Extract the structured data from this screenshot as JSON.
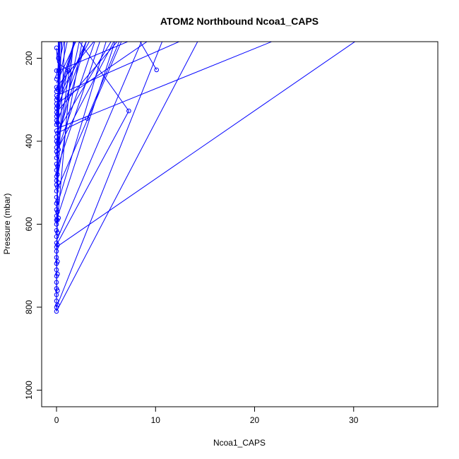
{
  "chart_data": {
    "type": "line",
    "title": "ATOM2 Northbound Ncoa1_CAPS",
    "xlabel": "Ncoa1_CAPS",
    "ylabel": "Pressure (mbar)",
    "xlim": [
      -1.5,
      38.5
    ],
    "ylim": [
      1040,
      160
    ],
    "y_axis_reversed": true,
    "xticks": [
      0,
      10,
      20,
      30
    ],
    "yticks": [
      200,
      400,
      600,
      800,
      1000
    ],
    "grid": false,
    "legend": "none",
    "series_color": "#0000ff",
    "segments": [
      {
        "x": [
          0.0,
          0.2,
          8.2,
          10.1
        ],
        "y": [
          810,
          230,
          150,
          228
        ]
      },
      {
        "x": [
          0.0,
          7.3,
          2.0,
          0.1,
          0.0
        ],
        "y": [
          650,
          327,
          150,
          300,
          360
        ]
      },
      {
        "x": [
          0.0,
          0.1,
          6.0
        ],
        "y": [
          480,
          420,
          150
        ]
      },
      {
        "x": [
          0.0,
          0.1,
          3.1,
          6.5
        ],
        "y": [
          410,
          380,
          345,
          150
        ]
      },
      {
        "x": [
          0.0,
          1.2,
          0.1,
          0.0
        ],
        "y": [
          300,
          230,
          210,
          175
        ]
      }
    ],
    "rays": [
      {
        "x": [
          0.0,
          35.0
        ],
        "y": [
          655,
          80
        ]
      },
      {
        "x": [
          0.0,
          30.0
        ],
        "y": [
          370,
          80
        ]
      },
      {
        "x": [
          0.0,
          16.0
        ],
        "y": [
          810,
          80
        ]
      },
      {
        "x": [
          0.0,
          12.0
        ],
        "y": [
          800,
          80
        ]
      },
      {
        "x": [
          0.0,
          10.0
        ],
        "y": [
          640,
          80
        ]
      },
      {
        "x": [
          0.0,
          9.0
        ],
        "y": [
          330,
          80
        ]
      },
      {
        "x": [
          0.0,
          8.0
        ],
        "y": [
          520,
          80
        ]
      },
      {
        "x": [
          0.0,
          7.0
        ],
        "y": [
          590,
          80
        ]
      },
      {
        "x": [
          0.0,
          6.0
        ],
        "y": [
          560,
          80
        ]
      },
      {
        "x": [
          0.0,
          5.5
        ],
        "y": [
          470,
          80
        ]
      },
      {
        "x": [
          0.0,
          5.0
        ],
        "y": [
          430,
          80
        ]
      },
      {
        "x": [
          0.0,
          4.5
        ],
        "y": [
          320,
          80
        ]
      },
      {
        "x": [
          0.0,
          4.0
        ],
        "y": [
          400,
          80
        ]
      },
      {
        "x": [
          0.0,
          3.5
        ],
        "y": [
          260,
          80
        ]
      },
      {
        "x": [
          0.0,
          3.2
        ],
        "y": [
          500,
          80
        ]
      },
      {
        "x": [
          0.0,
          2.8
        ],
        "y": [
          300,
          80
        ]
      },
      {
        "x": [
          0.0,
          2.5
        ],
        "y": [
          350,
          80
        ]
      },
      {
        "x": [
          0.0,
          2.2
        ],
        "y": [
          440,
          80
        ]
      },
      {
        "x": [
          0.0,
          1.8
        ],
        "y": [
          280,
          80
        ]
      },
      {
        "x": [
          0.0,
          1.5
        ],
        "y": [
          240,
          80
        ]
      },
      {
        "x": [
          0.0,
          1.2
        ],
        "y": [
          200,
          80
        ]
      },
      {
        "x": [
          0.0,
          0.8
        ],
        "y": [
          330,
          80
        ]
      },
      {
        "x": [
          0.0,
          0.6
        ],
        "y": [
          500,
          80
        ]
      },
      {
        "x": [
          0.0,
          0.4
        ],
        "y": [
          600,
          80
        ]
      },
      {
        "x": [
          0.0,
          0.3
        ],
        "y": [
          700,
          80
        ]
      },
      {
        "x": [
          0.0,
          0.2
        ],
        "y": [
          780,
          80
        ]
      },
      {
        "x": [
          0.0,
          1.0
        ],
        "y": [
          560,
          80
        ]
      },
      {
        "x": [
          0.0,
          2.0
        ],
        "y": [
          620,
          80
        ]
      },
      {
        "x": [
          0.0,
          3.0
        ],
        "y": [
          420,
          80
        ]
      },
      {
        "x": [
          0.0,
          4.2
        ],
        "y": [
          360,
          80
        ]
      },
      {
        "x": [
          0.0,
          5.2
        ],
        "y": [
          300,
          80
        ]
      },
      {
        "x": [
          0.0,
          6.5
        ],
        "y": [
          270,
          80
        ]
      },
      {
        "x": [
          0.0,
          7.5
        ],
        "y": [
          380,
          80
        ]
      },
      {
        "x": [
          0.0,
          14.0
        ],
        "y": [
          310,
          80
        ]
      },
      {
        "x": [
          0.0,
          20.0
        ],
        "y": [
          290,
          80
        ]
      }
    ],
    "points": [
      [
        0.0,
        810
      ],
      [
        0.0,
        800
      ],
      [
        0.0,
        785
      ],
      [
        0.0,
        770
      ],
      [
        0.0,
        755
      ],
      [
        0.0,
        740
      ],
      [
        0.0,
        725
      ],
      [
        0.0,
        710
      ],
      [
        0.0,
        695
      ],
      [
        0.0,
        680
      ],
      [
        0.0,
        665
      ],
      [
        0.0,
        655
      ],
      [
        0.0,
        645
      ],
      [
        0.0,
        630
      ],
      [
        0.0,
        615
      ],
      [
        0.0,
        600
      ],
      [
        0.0,
        590
      ],
      [
        0.0,
        580
      ],
      [
        0.0,
        565
      ],
      [
        0.0,
        550
      ],
      [
        0.0,
        535
      ],
      [
        0.0,
        520
      ],
      [
        0.0,
        505
      ],
      [
        0.0,
        495
      ],
      [
        0.0,
        485
      ],
      [
        0.0,
        470
      ],
      [
        0.0,
        455
      ],
      [
        0.0,
        440
      ],
      [
        0.0,
        425
      ],
      [
        0.0,
        415
      ],
      [
        0.0,
        400
      ],
      [
        0.0,
        390
      ],
      [
        0.0,
        375
      ],
      [
        0.0,
        360
      ],
      [
        0.0,
        350
      ],
      [
        0.0,
        340
      ],
      [
        0.0,
        330
      ],
      [
        0.0,
        320
      ],
      [
        0.0,
        310
      ],
      [
        0.0,
        300
      ],
      [
        0.0,
        290
      ],
      [
        0.0,
        280
      ],
      [
        0.0,
        270
      ],
      [
        0.0,
        250
      ],
      [
        0.0,
        230
      ],
      [
        0.0,
        175
      ],
      [
        0.1,
        795
      ],
      [
        0.1,
        760
      ],
      [
        0.1,
        720
      ],
      [
        0.1,
        690
      ],
      [
        0.1,
        650
      ],
      [
        0.1,
        620
      ],
      [
        0.1,
        590
      ],
      [
        0.1,
        570
      ],
      [
        0.1,
        545
      ],
      [
        0.1,
        510
      ],
      [
        0.1,
        480
      ],
      [
        0.1,
        460
      ],
      [
        0.1,
        430
      ],
      [
        0.1,
        405
      ],
      [
        0.1,
        380
      ],
      [
        0.1,
        355
      ],
      [
        0.1,
        335
      ],
      [
        0.1,
        315
      ],
      [
        0.1,
        295
      ],
      [
        0.1,
        275
      ],
      [
        0.1,
        245
      ],
      [
        0.2,
        585
      ],
      [
        0.2,
        500
      ],
      [
        0.2,
        420
      ],
      [
        0.2,
        360
      ],
      [
        0.2,
        230
      ],
      [
        0.2,
        200
      ],
      [
        1.2,
        230
      ],
      [
        3.1,
        345
      ],
      [
        7.3,
        327
      ],
      [
        10.1,
        228
      ]
    ]
  }
}
